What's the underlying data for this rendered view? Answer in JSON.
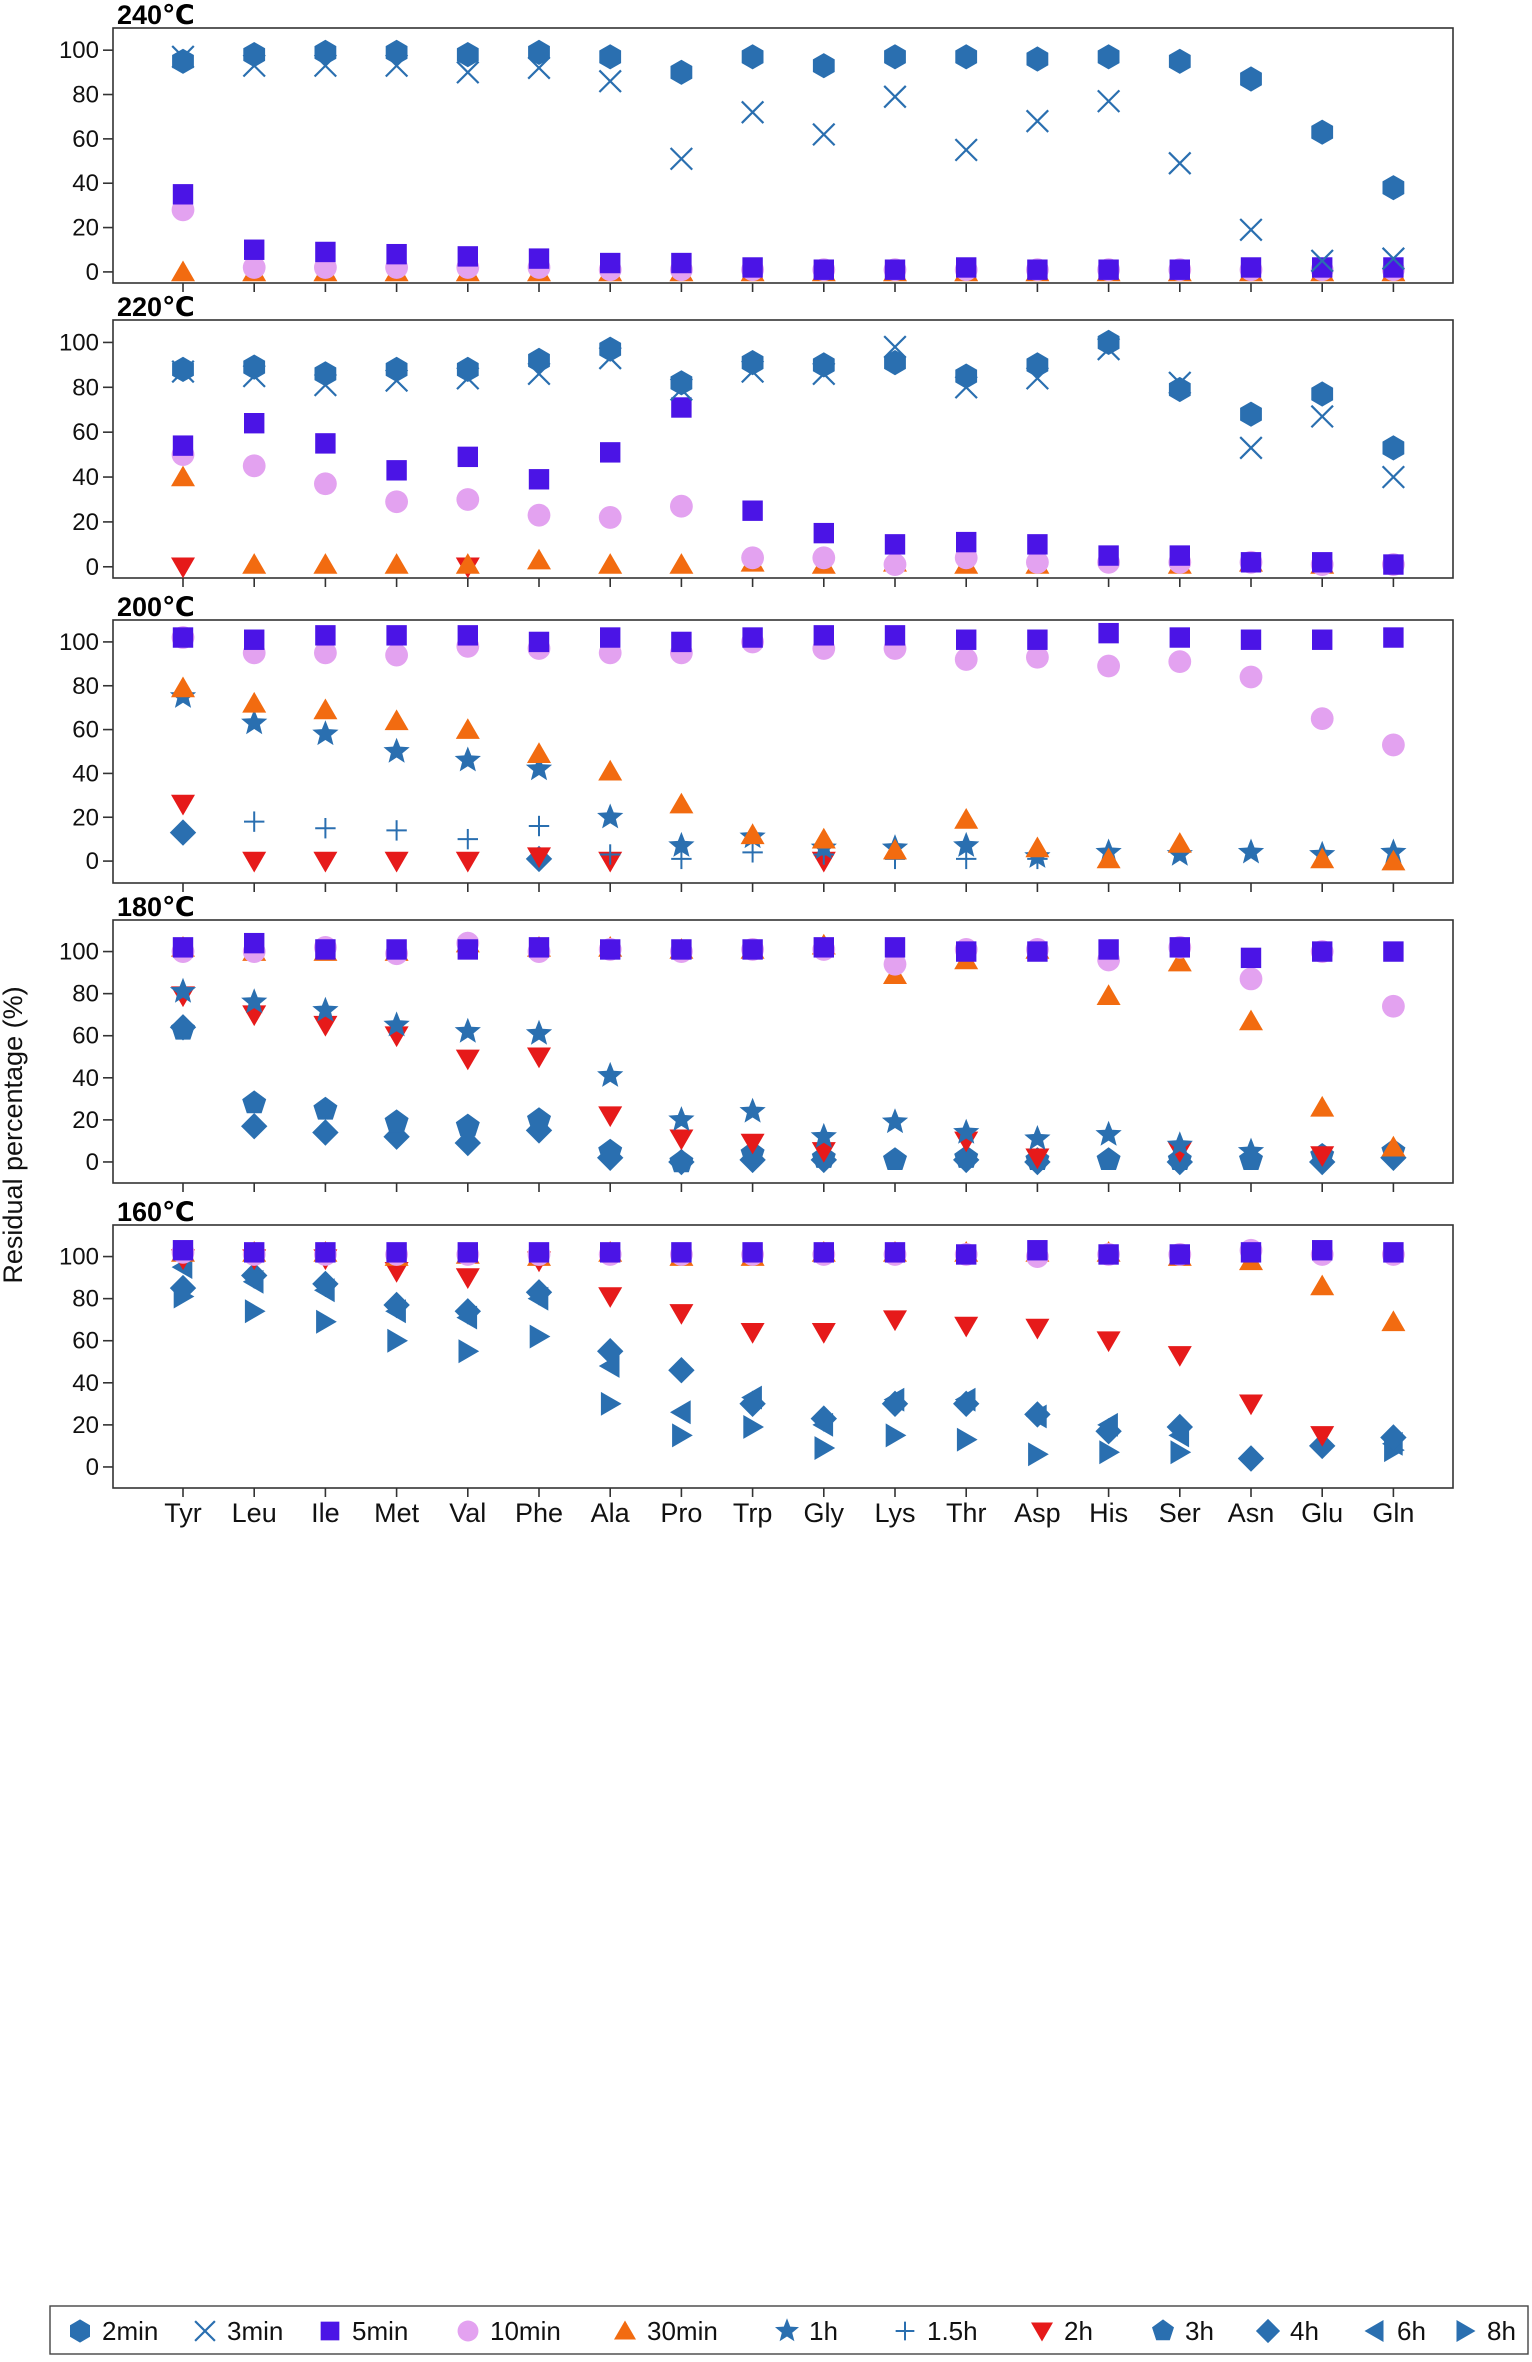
{
  "figure": {
    "ylabel": "Residual percentage (%)",
    "categories": [
      "Tyr",
      "Leu",
      "Ile",
      "Met",
      "Val",
      "Phe",
      "Ala",
      "Pro",
      "Trp",
      "Gly",
      "Lys",
      "Thr",
      "Asp",
      "His",
      "Ser",
      "Asn",
      "Glu",
      "Gln"
    ]
  },
  "legend": [
    {
      "key": "2min",
      "label": "2min",
      "marker": "hexagon-icon",
      "color": "#2a6fb0"
    },
    {
      "key": "3min",
      "label": "3min",
      "marker": "cross-icon",
      "color": "#2a6fb0"
    },
    {
      "key": "5min",
      "label": "5min",
      "marker": "square-icon",
      "color": "#4b14e6"
    },
    {
      "key": "10min",
      "label": "10min",
      "marker": "circle-icon",
      "color": "#e3a2f0"
    },
    {
      "key": "30min",
      "label": "30min",
      "marker": "triangle-up-icon",
      "color": "#f26b10"
    },
    {
      "key": "1h",
      "label": "1h",
      "marker": "star-icon",
      "color": "#2a6fb0"
    },
    {
      "key": "1.5h",
      "label": "1.5h",
      "marker": "plus-icon",
      "color": "#2a6fb0"
    },
    {
      "key": "2h",
      "label": "2h",
      "marker": "triangle-down-icon",
      "color": "#e61a1a"
    },
    {
      "key": "3h",
      "label": "3h",
      "marker": "pentagon-icon",
      "color": "#2a6fb0"
    },
    {
      "key": "4h",
      "label": "4h",
      "marker": "diamond-icon",
      "color": "#2a6fb0"
    },
    {
      "key": "6h",
      "label": "6h",
      "marker": "triangle-left-icon",
      "color": "#2a6fb0"
    },
    {
      "key": "8h",
      "label": "8h",
      "marker": "triangle-right-icon",
      "color": "#2a6fb0"
    }
  ],
  "chart_data": [
    {
      "type": "scatter",
      "title": "240℃",
      "ylim": [
        -5,
        110
      ],
      "yticks": [
        0,
        20,
        40,
        60,
        80,
        100
      ],
      "series": [
        {
          "name": "30min",
          "values": [
            0,
            0,
            0,
            0,
            0,
            0,
            0,
            0,
            0,
            0,
            0,
            0,
            0,
            0,
            0,
            0,
            0,
            0
          ]
        },
        {
          "name": "10min",
          "values": [
            28,
            2,
            2,
            2,
            2,
            2,
            1,
            1,
            1,
            1,
            1,
            1,
            1,
            1,
            1,
            1,
            1,
            1
          ]
        },
        {
          "name": "5min",
          "values": [
            35,
            10,
            9,
            8,
            7,
            6,
            4,
            4,
            2,
            1,
            1,
            2,
            1,
            1,
            1,
            2,
            2,
            2
          ]
        },
        {
          "name": "3min",
          "values": [
            97,
            93,
            93,
            93,
            90,
            92,
            86,
            51,
            72,
            62,
            79,
            55,
            68,
            77,
            49,
            19,
            5,
            6
          ]
        },
        {
          "name": "2min",
          "values": [
            95,
            98,
            99,
            99,
            98,
            99,
            97,
            90,
            97,
            93,
            97,
            97,
            96,
            97,
            95,
            87,
            63,
            38
          ]
        }
      ]
    },
    {
      "type": "scatter",
      "title": "220℃",
      "ylim": [
        -5,
        110
      ],
      "yticks": [
        0,
        20,
        40,
        60,
        80,
        100
      ],
      "series": [
        {
          "name": "2h",
          "values": [
            0,
            null,
            null,
            null,
            0,
            null,
            null,
            null,
            null,
            null,
            null,
            null,
            null,
            null,
            null,
            null,
            null,
            null
          ]
        },
        {
          "name": "30min",
          "values": [
            40,
            1,
            1,
            1,
            1,
            3,
            1,
            1,
            2,
            1,
            2,
            1,
            1,
            null,
            1,
            2,
            1,
            null
          ]
        },
        {
          "name": "10min",
          "values": [
            50,
            45,
            37,
            29,
            30,
            23,
            22,
            27,
            4,
            4,
            1,
            4,
            2,
            2,
            2,
            2,
            1,
            1
          ]
        },
        {
          "name": "5min",
          "values": [
            54,
            64,
            55,
            43,
            49,
            39,
            51,
            71,
            25,
            15,
            10,
            11,
            10,
            5,
            5,
            2,
            2,
            1
          ]
        },
        {
          "name": "3min",
          "values": [
            87,
            85,
            81,
            83,
            84,
            86,
            93,
            79,
            87,
            86,
            98,
            80,
            84,
            97,
            82,
            53,
            67,
            40
          ]
        },
        {
          "name": "2min",
          "values": [
            88,
            89,
            86,
            88,
            88,
            92,
            97,
            82,
            91,
            90,
            91,
            85,
            90,
            100,
            79,
            68,
            77,
            53
          ]
        }
      ]
    },
    {
      "type": "scatter",
      "title": "200℃",
      "ylim": [
        -10,
        110
      ],
      "yticks": [
        0,
        20,
        40,
        60,
        80,
        100
      ],
      "series": [
        {
          "name": "4h",
          "values": [
            13,
            null,
            null,
            null,
            null,
            1,
            null,
            null,
            null,
            null,
            null,
            null,
            null,
            null,
            null,
            null,
            null,
            null
          ]
        },
        {
          "name": "2h",
          "values": [
            26,
            0,
            0,
            0,
            0,
            2,
            0,
            null,
            null,
            0,
            null,
            null,
            null,
            null,
            null,
            null,
            null,
            null
          ]
        },
        {
          "name": "1.5h",
          "values": [
            null,
            18,
            15,
            14,
            10,
            16,
            3,
            1,
            4,
            3,
            1,
            1,
            1,
            null,
            null,
            null,
            null,
            null
          ]
        },
        {
          "name": "1h",
          "values": [
            75,
            63,
            58,
            50,
            46,
            42,
            20,
            7,
            11,
            6,
            6,
            7,
            2,
            4,
            3,
            4,
            3,
            4
          ]
        },
        {
          "name": "30min",
          "values": [
            79,
            72,
            69,
            64,
            60,
            49,
            41,
            26,
            12,
            10,
            5,
            19,
            6,
            1,
            8,
            null,
            1,
            0
          ]
        },
        {
          "name": "10min",
          "values": [
            102,
            95,
            95,
            94,
            98,
            97,
            95,
            95,
            100,
            97,
            97,
            92,
            93,
            89,
            91,
            84,
            65,
            53
          ]
        },
        {
          "name": "5min",
          "values": [
            102,
            101,
            103,
            103,
            103,
            100,
            102,
            100,
            102,
            103,
            103,
            101,
            101,
            104,
            102,
            101,
            101,
            102
          ]
        }
      ]
    },
    {
      "type": "scatter",
      "title": "180℃",
      "ylim": [
        -10,
        115
      ],
      "yticks": [
        0,
        20,
        40,
        60,
        80,
        100
      ],
      "series": [
        {
          "name": "4h",
          "values": [
            64,
            17,
            14,
            12,
            9,
            15,
            2,
            0,
            1,
            1,
            null,
            1,
            0,
            null,
            0,
            null,
            0,
            2
          ]
        },
        {
          "name": "3h",
          "values": [
            63,
            28,
            25,
            19,
            17,
            20,
            5,
            0,
            4,
            2,
            1,
            2,
            1,
            1,
            1,
            1,
            3,
            5
          ]
        },
        {
          "name": "2h",
          "values": [
            79,
            70,
            65,
            60,
            49,
            50,
            22,
            11,
            9,
            5,
            null,
            10,
            2,
            null,
            5,
            null,
            3,
            null
          ]
        },
        {
          "name": "1h",
          "values": [
            81,
            76,
            72,
            65,
            62,
            61,
            41,
            20,
            24,
            12,
            19,
            14,
            11,
            13,
            8,
            5,
            null,
            null
          ]
        },
        {
          "name": "30min",
          "values": [
            102,
            100,
            100,
            100,
            104,
            102,
            102,
            101,
            101,
            103,
            89,
            96,
            101,
            79,
            95,
            67,
            26,
            7
          ]
        },
        {
          "name": "10min",
          "values": [
            100,
            100,
            102,
            99,
            104,
            100,
            101,
            100,
            101,
            101,
            94,
            101,
            101,
            96,
            102,
            87,
            100,
            74
          ]
        },
        {
          "name": "5min",
          "values": [
            102,
            104,
            101,
            101,
            101,
            102,
            101,
            101,
            101,
            102,
            102,
            100,
            100,
            101,
            102,
            97,
            100,
            100
          ]
        }
      ]
    },
    {
      "type": "scatter",
      "title": "160℃",
      "ylim": [
        -10,
        115
      ],
      "yticks": [
        0,
        20,
        40,
        60,
        80,
        100
      ],
      "series": [
        {
          "name": "8h",
          "values": [
            81,
            74,
            69,
            60,
            55,
            62,
            30,
            15,
            19,
            9,
            15,
            13,
            6,
            7,
            7,
            null,
            null,
            8
          ]
        },
        {
          "name": "6h",
          "values": [
            95,
            88,
            84,
            74,
            71,
            80,
            48,
            26,
            33,
            20,
            32,
            32,
            24,
            20,
            15,
            null,
            null,
            11
          ]
        },
        {
          "name": "4h",
          "values": [
            85,
            91,
            87,
            77,
            74,
            83,
            55,
            46,
            30,
            23,
            30,
            30,
            25,
            17,
            19,
            4,
            10,
            14
          ]
        },
        {
          "name": "2h",
          "values": [
            99,
            99,
            99,
            93,
            90,
            98,
            81,
            73,
            64,
            64,
            70,
            67,
            66,
            60,
            53,
            30,
            15,
            null
          ]
        },
        {
          "name": "30min",
          "values": [
            102,
            102,
            102,
            100,
            101,
            100,
            102,
            100,
            100,
            102,
            102,
            102,
            102,
            102,
            100,
            98,
            86,
            69
          ]
        },
        {
          "name": "10min",
          "values": [
            102,
            101,
            101,
            101,
            101,
            101,
            101,
            101,
            101,
            101,
            101,
            101,
            100,
            101,
            101,
            103,
            101,
            101
          ]
        },
        {
          "name": "5min",
          "values": [
            103,
            102,
            102,
            102,
            102,
            102,
            102,
            102,
            102,
            102,
            102,
            101,
            103,
            101,
            101,
            102,
            103,
            102
          ]
        }
      ]
    }
  ]
}
